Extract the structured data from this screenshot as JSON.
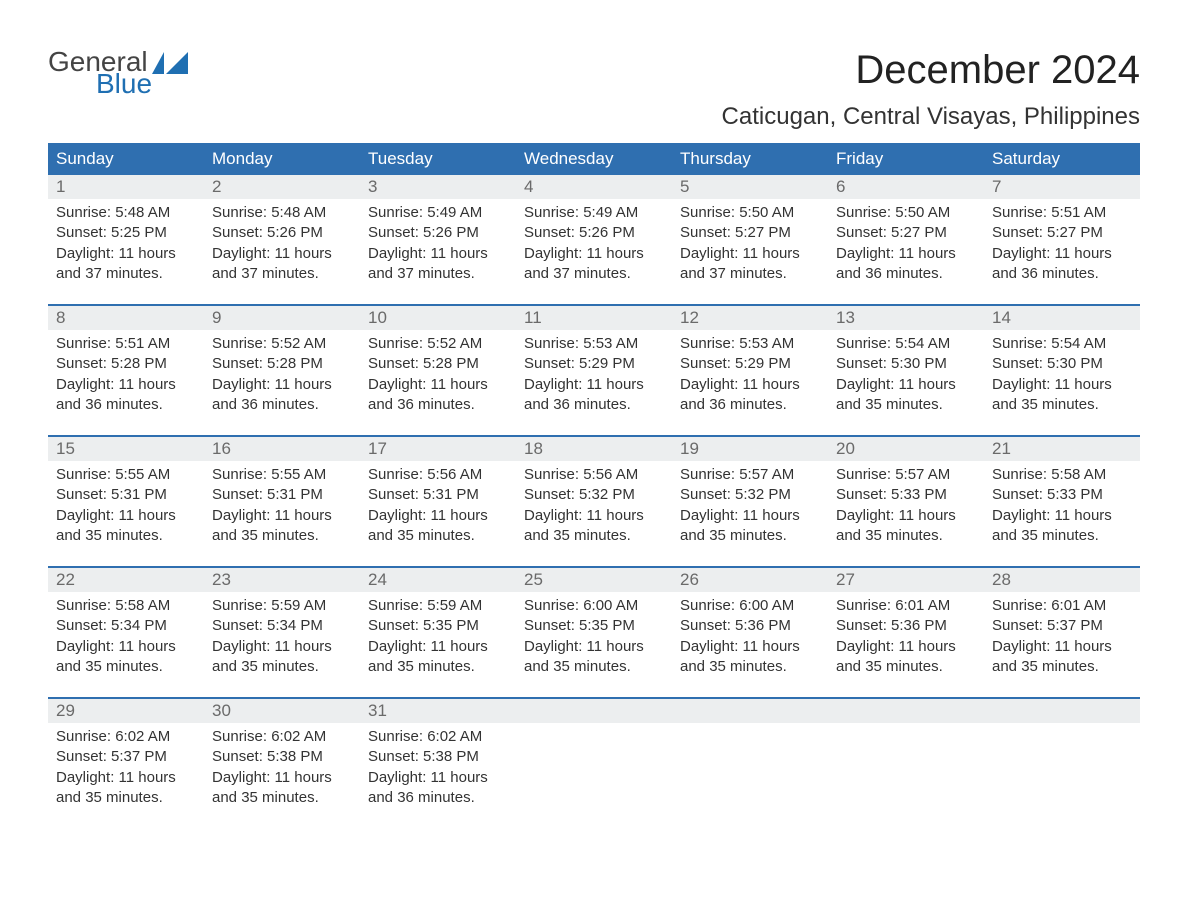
{
  "brand": {
    "general": "General",
    "blue": "Blue",
    "logo_color_dark": "#444444",
    "logo_color_blue": "#1f6fb2"
  },
  "header": {
    "month_title": "December 2024",
    "location": "Caticugan, Central Visayas, Philippines"
  },
  "colors": {
    "header_bg": "#2f6fb0",
    "header_text": "#ffffff",
    "daynum_bg": "#eceeef",
    "daynum_text": "#6a6a6a",
    "body_text": "#333333",
    "week_rule": "#2f6fb0"
  },
  "days_of_week": [
    "Sunday",
    "Monday",
    "Tuesday",
    "Wednesday",
    "Thursday",
    "Friday",
    "Saturday"
  ],
  "labels": {
    "sunrise": "Sunrise:",
    "sunset": "Sunset:",
    "daylight": "Daylight:"
  },
  "weeks": [
    [
      {
        "num": "1",
        "sunrise": "5:48 AM",
        "sunset": "5:25 PM",
        "daylight_l1": "11 hours",
        "daylight_l2": "and 37 minutes."
      },
      {
        "num": "2",
        "sunrise": "5:48 AM",
        "sunset": "5:26 PM",
        "daylight_l1": "11 hours",
        "daylight_l2": "and 37 minutes."
      },
      {
        "num": "3",
        "sunrise": "5:49 AM",
        "sunset": "5:26 PM",
        "daylight_l1": "11 hours",
        "daylight_l2": "and 37 minutes."
      },
      {
        "num": "4",
        "sunrise": "5:49 AM",
        "sunset": "5:26 PM",
        "daylight_l1": "11 hours",
        "daylight_l2": "and 37 minutes."
      },
      {
        "num": "5",
        "sunrise": "5:50 AM",
        "sunset": "5:27 PM",
        "daylight_l1": "11 hours",
        "daylight_l2": "and 37 minutes."
      },
      {
        "num": "6",
        "sunrise": "5:50 AM",
        "sunset": "5:27 PM",
        "daylight_l1": "11 hours",
        "daylight_l2": "and 36 minutes."
      },
      {
        "num": "7",
        "sunrise": "5:51 AM",
        "sunset": "5:27 PM",
        "daylight_l1": "11 hours",
        "daylight_l2": "and 36 minutes."
      }
    ],
    [
      {
        "num": "8",
        "sunrise": "5:51 AM",
        "sunset": "5:28 PM",
        "daylight_l1": "11 hours",
        "daylight_l2": "and 36 minutes."
      },
      {
        "num": "9",
        "sunrise": "5:52 AM",
        "sunset": "5:28 PM",
        "daylight_l1": "11 hours",
        "daylight_l2": "and 36 minutes."
      },
      {
        "num": "10",
        "sunrise": "5:52 AM",
        "sunset": "5:28 PM",
        "daylight_l1": "11 hours",
        "daylight_l2": "and 36 minutes."
      },
      {
        "num": "11",
        "sunrise": "5:53 AM",
        "sunset": "5:29 PM",
        "daylight_l1": "11 hours",
        "daylight_l2": "and 36 minutes."
      },
      {
        "num": "12",
        "sunrise": "5:53 AM",
        "sunset": "5:29 PM",
        "daylight_l1": "11 hours",
        "daylight_l2": "and 36 minutes."
      },
      {
        "num": "13",
        "sunrise": "5:54 AM",
        "sunset": "5:30 PM",
        "daylight_l1": "11 hours",
        "daylight_l2": "and 35 minutes."
      },
      {
        "num": "14",
        "sunrise": "5:54 AM",
        "sunset": "5:30 PM",
        "daylight_l1": "11 hours",
        "daylight_l2": "and 35 minutes."
      }
    ],
    [
      {
        "num": "15",
        "sunrise": "5:55 AM",
        "sunset": "5:31 PM",
        "daylight_l1": "11 hours",
        "daylight_l2": "and 35 minutes."
      },
      {
        "num": "16",
        "sunrise": "5:55 AM",
        "sunset": "5:31 PM",
        "daylight_l1": "11 hours",
        "daylight_l2": "and 35 minutes."
      },
      {
        "num": "17",
        "sunrise": "5:56 AM",
        "sunset": "5:31 PM",
        "daylight_l1": "11 hours",
        "daylight_l2": "and 35 minutes."
      },
      {
        "num": "18",
        "sunrise": "5:56 AM",
        "sunset": "5:32 PM",
        "daylight_l1": "11 hours",
        "daylight_l2": "and 35 minutes."
      },
      {
        "num": "19",
        "sunrise": "5:57 AM",
        "sunset": "5:32 PM",
        "daylight_l1": "11 hours",
        "daylight_l2": "and 35 minutes."
      },
      {
        "num": "20",
        "sunrise": "5:57 AM",
        "sunset": "5:33 PM",
        "daylight_l1": "11 hours",
        "daylight_l2": "and 35 minutes."
      },
      {
        "num": "21",
        "sunrise": "5:58 AM",
        "sunset": "5:33 PM",
        "daylight_l1": "11 hours",
        "daylight_l2": "and 35 minutes."
      }
    ],
    [
      {
        "num": "22",
        "sunrise": "5:58 AM",
        "sunset": "5:34 PM",
        "daylight_l1": "11 hours",
        "daylight_l2": "and 35 minutes."
      },
      {
        "num": "23",
        "sunrise": "5:59 AM",
        "sunset": "5:34 PM",
        "daylight_l1": "11 hours",
        "daylight_l2": "and 35 minutes."
      },
      {
        "num": "24",
        "sunrise": "5:59 AM",
        "sunset": "5:35 PM",
        "daylight_l1": "11 hours",
        "daylight_l2": "and 35 minutes."
      },
      {
        "num": "25",
        "sunrise": "6:00 AM",
        "sunset": "5:35 PM",
        "daylight_l1": "11 hours",
        "daylight_l2": "and 35 minutes."
      },
      {
        "num": "26",
        "sunrise": "6:00 AM",
        "sunset": "5:36 PM",
        "daylight_l1": "11 hours",
        "daylight_l2": "and 35 minutes."
      },
      {
        "num": "27",
        "sunrise": "6:01 AM",
        "sunset": "5:36 PM",
        "daylight_l1": "11 hours",
        "daylight_l2": "and 35 minutes."
      },
      {
        "num": "28",
        "sunrise": "6:01 AM",
        "sunset": "5:37 PM",
        "daylight_l1": "11 hours",
        "daylight_l2": "and 35 minutes."
      }
    ],
    [
      {
        "num": "29",
        "sunrise": "6:02 AM",
        "sunset": "5:37 PM",
        "daylight_l1": "11 hours",
        "daylight_l2": "and 35 minutes."
      },
      {
        "num": "30",
        "sunrise": "6:02 AM",
        "sunset": "5:38 PM",
        "daylight_l1": "11 hours",
        "daylight_l2": "and 35 minutes."
      },
      {
        "num": "31",
        "sunrise": "6:02 AM",
        "sunset": "5:38 PM",
        "daylight_l1": "11 hours",
        "daylight_l2": "and 36 minutes."
      },
      null,
      null,
      null,
      null
    ]
  ]
}
